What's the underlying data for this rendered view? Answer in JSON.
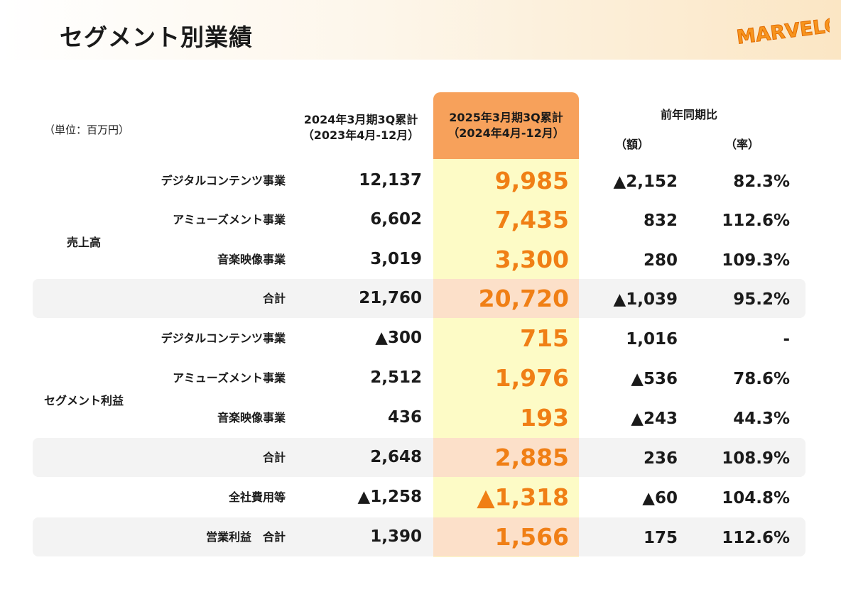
{
  "page": {
    "title": "セグメント別業績",
    "logo_text": "MARVELOUS!"
  },
  "table": {
    "unit": "（単位：百万円）",
    "headers": {
      "prev_line1": "2024年3月期3Q累計",
      "prev_line2": "（2023年4月-12月）",
      "curr_line1": "2025年3月期3Q累計",
      "curr_line2": "（2024年4月-12月）",
      "yoy": "前年同期比",
      "amount": "（額）",
      "rate": "（率）"
    },
    "groups": {
      "sales": "売上高",
      "segment_profit": "セグメント利益"
    },
    "rows": [
      {
        "label": "デジタルコンテンツ事業",
        "prev": "12,137",
        "curr": "9,985",
        "amount": "▲2,152",
        "rate": "82.3%"
      },
      {
        "label": "アミューズメント事業",
        "prev": "6,602",
        "curr": "7,435",
        "amount": "832",
        "rate": "112.6%"
      },
      {
        "label": "音楽映像事業",
        "prev": "3,019",
        "curr": "3,300",
        "amount": "280",
        "rate": "109.3%"
      },
      {
        "label": "合計",
        "prev": "21,760",
        "curr": "20,720",
        "amount": "▲1,039",
        "rate": "95.2%"
      },
      {
        "label": "デジタルコンテンツ事業",
        "prev": "▲300",
        "curr": "715",
        "amount": "1,016",
        "rate": "-"
      },
      {
        "label": "アミューズメント事業",
        "prev": "2,512",
        "curr": "1,976",
        "amount": "▲536",
        "rate": "78.6%"
      },
      {
        "label": "音楽映像事業",
        "prev": "436",
        "curr": "193",
        "amount": "▲243",
        "rate": "44.3%"
      },
      {
        "label": "合計",
        "prev": "2,648",
        "curr": "2,885",
        "amount": "236",
        "rate": "108.9%"
      },
      {
        "label": "全社費用等",
        "prev": "▲1,258",
        "curr": "▲1,318",
        "amount": "▲60",
        "rate": "104.8%"
      },
      {
        "label": "営業利益　合計",
        "prev": "1,390",
        "curr": "1,566",
        "amount": "175",
        "rate": "112.6%"
      }
    ]
  }
}
